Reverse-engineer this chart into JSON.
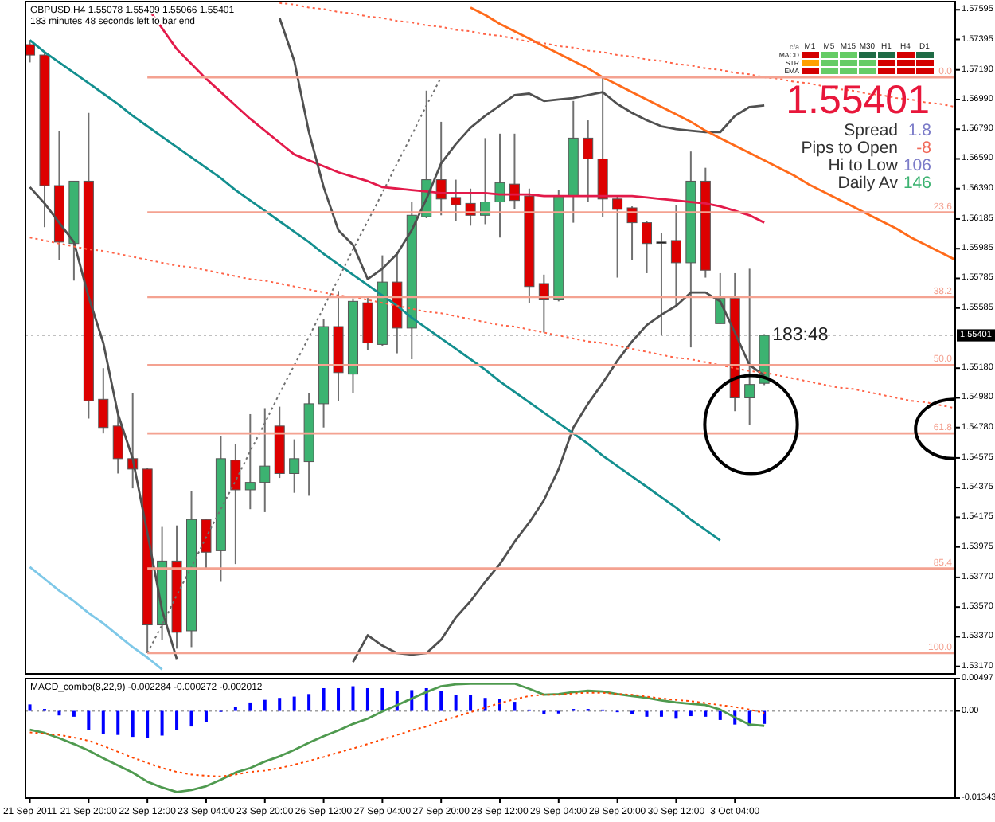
{
  "chart_data": [
    {
      "type": "candlestick",
      "title": "GBPUSD,H4 1.55078 1.55409 1.55066 1.55401",
      "subtitle": "183 minutes 48 seconds left to bar end",
      "categories": [
        null,
        null,
        null,
        null,
        null,
        null,
        null,
        null,
        null,
        null,
        null,
        null,
        null,
        null,
        null,
        null,
        null,
        null,
        null,
        null,
        null,
        null,
        null,
        null,
        null,
        null,
        null,
        null,
        null,
        null,
        null,
        null,
        null,
        null,
        null,
        null,
        null,
        null,
        null,
        null,
        null,
        null,
        null,
        null,
        null,
        null,
        null,
        null,
        null,
        null,
        null,
        null,
        null,
        null,
        null,
        null,
        null,
        null,
        null,
        null,
        null,
        null,
        null,
        null
      ],
      "ohlc": [
        [
          1.5736,
          1.5739,
          1.5724,
          1.5729
        ],
        [
          1.5729,
          1.5731,
          1.5613,
          1.5641
        ],
        [
          1.5641,
          1.5678,
          1.5591,
          1.5603
        ],
        [
          1.5602,
          1.5644,
          1.5577,
          1.5644
        ],
        [
          1.5644,
          1.569,
          1.5484,
          1.5496
        ],
        [
          1.5497,
          1.5518,
          1.5474,
          1.5478
        ],
        [
          1.5479,
          1.5487,
          1.5447,
          1.5457
        ],
        [
          1.5457,
          1.5501,
          1.5437,
          1.545
        ],
        [
          1.545,
          1.5451,
          1.5326,
          1.5345
        ],
        [
          1.5345,
          1.5411,
          1.5335,
          1.5388
        ],
        [
          1.5388,
          1.5412,
          1.5329,
          1.534
        ],
        [
          1.5341,
          1.5435,
          1.533,
          1.5416
        ],
        [
          1.5416,
          1.5416,
          1.5383,
          1.5394
        ],
        [
          1.5395,
          1.5472,
          1.5374,
          1.5457
        ],
        [
          1.5456,
          1.5467,
          1.5386,
          1.5436
        ],
        [
          1.5436,
          1.5487,
          1.5423,
          1.5441
        ],
        [
          1.5441,
          1.5491,
          1.5421,
          1.5452
        ],
        [
          1.5479,
          1.5492,
          1.5444,
          1.5447
        ],
        [
          1.5447,
          1.547,
          1.5434,
          1.5457
        ],
        [
          1.5455,
          1.5501,
          1.5432,
          1.5494
        ],
        [
          1.5494,
          1.5551,
          1.5478,
          1.5546
        ],
        [
          1.5546,
          1.557,
          1.5496,
          1.5515
        ],
        [
          1.5514,
          1.5565,
          1.5501,
          1.5563
        ],
        [
          1.5562,
          1.5566,
          1.553,
          1.5535
        ],
        [
          1.5534,
          1.5594,
          1.5533,
          1.5576
        ],
        [
          1.5576,
          1.5596,
          1.5528,
          1.5545
        ],
        [
          1.5545,
          1.563,
          1.5524,
          1.5621
        ],
        [
          1.562,
          1.5705,
          1.5619,
          1.5645
        ],
        [
          1.5645,
          1.5684,
          1.5621,
          1.5632
        ],
        [
          1.5633,
          1.5645,
          1.5617,
          1.5628
        ],
        [
          1.5629,
          1.5639,
          1.5614,
          1.5621
        ],
        [
          1.5621,
          1.5673,
          1.5615,
          1.563
        ],
        [
          1.563,
          1.5676,
          1.5606,
          1.5643
        ],
        [
          1.5642,
          1.5676,
          1.5625,
          1.5631
        ],
        [
          1.5634,
          1.5639,
          1.5562,
          1.5573
        ],
        [
          1.5575,
          1.5581,
          1.5542,
          1.5564
        ],
        [
          1.5564,
          1.5638,
          1.5563,
          1.5634
        ],
        [
          1.5634,
          1.5698,
          1.5616,
          1.5673
        ],
        [
          1.5673,
          1.5685,
          1.563,
          1.5659
        ],
        [
          1.5659,
          1.5714,
          1.562,
          1.5632
        ],
        [
          1.5632,
          1.5634,
          1.5579,
          1.5625
        ],
        [
          1.5626,
          1.5627,
          1.5591,
          1.5616
        ],
        [
          1.5616,
          1.5617,
          1.5582,
          1.5602
        ],
        [
          1.5603,
          1.5609,
          1.554,
          1.5603
        ],
        [
          1.5604,
          1.5628,
          1.556,
          1.5589
        ],
        [
          1.5589,
          1.5664,
          1.5532,
          1.5644
        ],
        [
          1.5644,
          1.5653,
          1.5579,
          1.5584
        ],
        [
          1.5548,
          1.5582,
          1.5548,
          1.5565
        ],
        [
          1.5565,
          1.5582,
          1.5489,
          1.5498
        ],
        [
          1.5498,
          1.5585,
          1.548,
          1.5507
        ],
        [
          1.55078,
          1.55409,
          1.55066,
          1.55401
        ],
        null,
        null,
        null,
        null,
        null,
        null,
        null,
        null,
        null,
        null,
        null,
        null,
        null
      ],
      "colors": [
        "#dd0000",
        "#dd0000",
        "#dd0000",
        "#3cb371",
        "#dd0000",
        "#dd0000",
        "#dd0000",
        "#dd0000",
        "#dd0000",
        "#3cb371",
        "#dd0000",
        "#3cb371",
        "#dd0000",
        "#3cb371",
        "#dd0000",
        "#3cb371",
        "#3cb371",
        "#dd0000",
        "#3cb371",
        "#3cb371",
        "#3cb371",
        "#dd0000",
        "#3cb371",
        "#dd0000",
        "#3cb371",
        "#dd0000",
        "#3cb371",
        "#3cb371",
        "#dd0000",
        "#dd0000",
        "#dd0000",
        "#3cb371",
        "#3cb371",
        "#dd0000",
        "#dd0000",
        "#dd0000",
        "#3cb371",
        "#3cb371",
        "#dd0000",
        "#dd0000",
        "#dd0000",
        "#dd0000",
        "#dd0000",
        "#000000",
        "#dd0000",
        "#3cb371",
        "#dd0000",
        "#3cb371",
        "#dd0000",
        "#3cb371",
        "#3cb371",
        null,
        null,
        null,
        null,
        null,
        null,
        null,
        null,
        null,
        null,
        null,
        null,
        null
      ],
      "series": [
        {
          "type": "line",
          "color": "#e31a4a",
          "values": [
            null,
            null,
            null,
            null,
            null,
            null,
            null,
            null,
            1.5761,
            1.5747,
            1.5733,
            1.5723,
            1.5713,
            1.5704,
            1.5695,
            1.5686,
            1.5678,
            1.567,
            1.5662,
            1.5658,
            1.5654,
            1.565,
            1.5647,
            1.5644,
            1.564,
            1.5639,
            1.5638,
            1.5637,
            1.5636,
            1.5636,
            1.5636,
            1.5636,
            1.5635,
            1.5635,
            1.5635,
            1.5634,
            1.5634,
            1.5634,
            1.5634,
            1.5634,
            1.5634,
            1.5634,
            1.5633,
            1.5632,
            1.5631,
            1.563,
            1.5629,
            1.5627,
            1.5624,
            1.5621,
            1.5616,
            null,
            null,
            null,
            null,
            null,
            null,
            null,
            null,
            null,
            null,
            null,
            null,
            null
          ]
        },
        {
          "type": "line",
          "color": "#505050",
          "values": [
            null,
            null,
            null,
            null,
            null,
            null,
            null,
            null,
            null,
            null,
            null,
            null,
            null,
            null,
            null,
            null,
            null,
            1.5754,
            1.5725,
            1.5677,
            1.564,
            1.5611,
            1.5601,
            1.5578,
            1.5585,
            1.5595,
            1.5611,
            1.5632,
            1.5656,
            1.5669,
            1.568,
            1.5688,
            1.5695,
            1.5702,
            1.5703,
            1.5698,
            1.5699,
            1.57,
            1.5702,
            1.5704,
            1.5696,
            1.569,
            1.5685,
            1.5681,
            1.5679,
            1.5678,
            1.5677,
            1.5677,
            1.5688,
            1.5694,
            1.5695,
            null,
            null,
            null,
            null,
            null,
            null,
            null,
            null,
            null,
            null,
            null,
            null,
            null
          ]
        },
        {
          "type": "line",
          "color": "#505050",
          "values": [
            1.564,
            1.5629,
            1.5616,
            1.5603,
            1.5566,
            1.5535,
            1.5487,
            1.5457,
            1.5407,
            1.5355,
            1.5322,
            null,
            null,
            null,
            null,
            null,
            null,
            null,
            null,
            null,
            null,
            null,
            1.532,
            1.5338,
            1.5331,
            1.5326,
            1.5325,
            1.5326,
            1.5335,
            1.535,
            1.5361,
            1.5374,
            1.5386,
            1.5401,
            1.5414,
            1.5429,
            1.545,
            1.5478,
            1.5494,
            1.5508,
            1.5523,
            1.5536,
            1.5547,
            1.5554,
            1.556,
            1.5569,
            1.5569,
            1.5563,
            1.5542,
            1.552,
            1.5513,
            null,
            null,
            null,
            null,
            null,
            null,
            null,
            null,
            null,
            null,
            null,
            null,
            null
          ]
        },
        {
          "type": "line",
          "color": "#138f8f",
          "values": [
            1.5739,
            1.5731,
            1.5724,
            1.5717,
            1.571,
            1.5703,
            1.5696,
            1.5688,
            1.5681,
            1.5674,
            1.5667,
            1.566,
            1.5653,
            1.5646,
            1.5638,
            1.5631,
            1.5624,
            1.5617,
            1.561,
            1.5603,
            1.5595,
            1.5588,
            1.5581,
            1.5574,
            1.5567,
            1.556,
            1.5552,
            1.5545,
            1.5538,
            1.5531,
            1.5524,
            1.5517,
            1.5509,
            1.5502,
            1.5495,
            1.5488,
            1.5481,
            1.5474,
            1.5467,
            1.5459,
            1.5452,
            1.5445,
            1.5438,
            1.5431,
            1.5424,
            1.5416,
            1.5409,
            1.5402,
            null,
            null,
            null,
            null,
            null,
            null,
            null,
            null,
            null,
            null,
            null,
            null,
            null,
            null,
            null,
            null
          ]
        },
        {
          "type": "line",
          "color": "#ff6a1a",
          "values": [
            null,
            null,
            null,
            null,
            null,
            null,
            null,
            null,
            null,
            null,
            null,
            null,
            null,
            null,
            null,
            null,
            null,
            null,
            null,
            null,
            null,
            null,
            null,
            null,
            null,
            null,
            null,
            null,
            null,
            null,
            1.5761,
            1.5756,
            1.575,
            1.5745,
            1.574,
            1.5735,
            1.573,
            1.5725,
            1.572,
            1.5714,
            1.5709,
            1.5704,
            1.5699,
            1.5694,
            1.5689,
            1.5684,
            1.5678,
            1.5673,
            1.5668,
            1.5663,
            1.5658,
            1.5653,
            1.5648,
            1.5642,
            1.5637,
            1.5632,
            1.5627,
            1.5622,
            1.5617,
            1.5612,
            1.5606,
            1.5601,
            1.5596,
            1.5591
          ]
        },
        {
          "type": "line",
          "color": "#ff6347",
          "line_style": "dotted",
          "values": [
            1.5606,
            1.5604,
            1.5602,
            1.56,
            1.5598,
            1.5597,
            1.5595,
            1.5593,
            1.5591,
            1.5589,
            1.5587,
            1.5586,
            1.5584,
            1.5582,
            1.558,
            1.5578,
            1.5577,
            1.5575,
            1.5573,
            1.5571,
            1.5569,
            1.5567,
            1.5566,
            1.5564,
            1.5562,
            1.556,
            1.5558,
            1.5556,
            1.5555,
            1.5553,
            1.5551,
            1.5549,
            1.5547,
            1.5546,
            1.5544,
            1.5542,
            1.554,
            1.5538,
            1.5536,
            1.5535,
            1.5533,
            1.5531,
            1.5529,
            1.5527,
            1.5525,
            1.5524,
            1.5522,
            1.552,
            1.5518,
            1.5516,
            1.5515,
            1.5513,
            1.5511,
            1.5509,
            1.5507,
            1.5505,
            1.5504,
            1.5502,
            1.55,
            1.5498,
            1.5496,
            1.5495,
            1.5493,
            1.5491
          ]
        },
        {
          "type": "line",
          "color": "#ff6347",
          "line_style": "dotted",
          "values": [
            null,
            null,
            null,
            null,
            null,
            null,
            null,
            null,
            null,
            null,
            null,
            null,
            null,
            null,
            null,
            null,
            null,
            1.5764,
            1.5763,
            1.5761,
            1.576,
            1.5758,
            1.5757,
            1.5755,
            1.5754,
            1.5752,
            1.5751,
            1.5749,
            1.5748,
            1.5746,
            1.5745,
            1.5743,
            1.5742,
            1.574,
            1.5738,
            1.5737,
            1.5735,
            1.5734,
            1.5732,
            1.5731,
            1.5729,
            1.5728,
            1.5726,
            1.5725,
            1.5723,
            1.5722,
            1.572,
            1.5719,
            1.5717,
            1.5716,
            1.5714,
            1.5713,
            1.5711,
            1.571,
            1.5708,
            1.5706,
            1.5705,
            1.5703,
            1.5702,
            1.57,
            1.5699,
            1.5697,
            1.5696,
            1.5694
          ]
        },
        {
          "type": "line",
          "color": "#7ec8e8",
          "values": [
            1.5384,
            1.5376,
            1.5368,
            1.5361,
            1.5353,
            1.5346,
            1.5338,
            1.533,
            1.5323,
            1.5315,
            null,
            null,
            null,
            null,
            null,
            null,
            null,
            null,
            null,
            null,
            null,
            null,
            null,
            null,
            null,
            null,
            null,
            null,
            null,
            null,
            null,
            null,
            null,
            null,
            null,
            null,
            null,
            null,
            null,
            null,
            null,
            null,
            null,
            null,
            null,
            null,
            null,
            null,
            null,
            null,
            null,
            null,
            null,
            null,
            null,
            null,
            null,
            null,
            null,
            null,
            null,
            null,
            null,
            null
          ]
        },
        {
          "type": "line",
          "color": "#707070",
          "line_style": "dotted",
          "values": [
            null,
            null,
            null,
            null,
            null,
            null,
            null,
            null,
            1.5326,
            1.5345,
            1.5365,
            1.5384,
            1.5404,
            1.5423,
            1.5442,
            1.5462,
            1.5481,
            1.5501,
            1.552,
            1.5539,
            1.5559,
            1.5578,
            1.5598,
            1.5617,
            1.5636,
            1.5656,
            1.5675,
            1.5695,
            1.5714,
            null,
            null,
            null,
            null,
            null,
            null,
            null,
            null,
            null,
            null,
            null,
            null,
            null,
            null,
            null,
            null,
            null,
            null,
            null,
            null,
            null,
            null,
            null,
            null,
            null,
            null,
            null,
            null,
            null,
            null,
            null,
            null,
            null,
            null,
            null
          ]
        },
        {
          "type": "line",
          "name": "0.0",
          "color": "#f4a291",
          "values": [
            null,
            null,
            null,
            null,
            null,
            null,
            null,
            null,
            1.5714,
            1.5714,
            1.5714,
            1.5714,
            1.5714,
            1.5714,
            1.5714,
            1.5714,
            1.5714,
            1.5714,
            1.5714,
            1.5714,
            1.5714,
            1.5714,
            1.5714,
            1.5714,
            1.5714,
            1.5714,
            1.5714,
            1.5714,
            1.5714,
            1.5714,
            1.5714,
            1.5714,
            1.5714,
            1.5714,
            1.5714,
            1.5714,
            1.5714,
            1.5714,
            1.5714,
            1.5714,
            1.5714,
            1.5714,
            1.5714,
            1.5714,
            1.5714,
            1.5714,
            1.5714,
            1.5714,
            1.5714,
            1.5714,
            1.5714,
            1.5714,
            1.5714,
            1.5714,
            1.5714,
            1.5714,
            1.5714,
            1.5714,
            1.5714,
            1.5714,
            1.5714,
            1.5714,
            1.5714,
            1.5714
          ]
        },
        {
          "type": "line",
          "name": "23.6",
          "color": "#f4a291",
          "values": [
            null,
            null,
            null,
            null,
            null,
            null,
            null,
            null,
            1.5623,
            1.5623,
            1.5623,
            1.5623,
            1.5623,
            1.5623,
            1.5623,
            1.5623,
            1.5623,
            1.5623,
            1.5623,
            1.5623,
            1.5623,
            1.5623,
            1.5623,
            1.5623,
            1.5623,
            1.5623,
            1.5623,
            1.5623,
            1.5623,
            1.5623,
            1.5623,
            1.5623,
            1.5623,
            1.5623,
            1.5623,
            1.5623,
            1.5623,
            1.5623,
            1.5623,
            1.5623,
            1.5623,
            1.5623,
            1.5623,
            1.5623,
            1.5623,
            1.5623,
            1.5623,
            1.5623,
            1.5623,
            1.5623,
            1.5623,
            1.5623,
            1.5623,
            1.5623,
            1.5623,
            1.5623,
            1.5623,
            1.5623,
            1.5623,
            1.5623,
            1.5623,
            1.5623,
            1.5623,
            1.5623
          ]
        },
        {
          "type": "line",
          "name": "38.2",
          "color": "#f4a291",
          "values": [
            null,
            null,
            null,
            null,
            null,
            null,
            null,
            null,
            1.5566,
            1.5566,
            1.5566,
            1.5566,
            1.5566,
            1.5566,
            1.5566,
            1.5566,
            1.5566,
            1.5566,
            1.5566,
            1.5566,
            1.5566,
            1.5566,
            1.5566,
            1.5566,
            1.5566,
            1.5566,
            1.5566,
            1.5566,
            1.5566,
            1.5566,
            1.5566,
            1.5566,
            1.5566,
            1.5566,
            1.5566,
            1.5566,
            1.5566,
            1.5566,
            1.5566,
            1.5566,
            1.5566,
            1.5566,
            1.5566,
            1.5566,
            1.5566,
            1.5566,
            1.5566,
            1.5566,
            1.5566,
            1.5566,
            1.5566,
            1.5566,
            1.5566,
            1.5566,
            1.5566,
            1.5566,
            1.5566,
            1.5566,
            1.5566,
            1.5566,
            1.5566,
            1.5566,
            1.5566,
            1.5566
          ]
        },
        {
          "type": "line",
          "name": "50.0",
          "color": "#f4a291",
          "values": [
            null,
            null,
            null,
            null,
            null,
            null,
            null,
            null,
            1.552,
            1.552,
            1.552,
            1.552,
            1.552,
            1.552,
            1.552,
            1.552,
            1.552,
            1.552,
            1.552,
            1.552,
            1.552,
            1.552,
            1.552,
            1.552,
            1.552,
            1.552,
            1.552,
            1.552,
            1.552,
            1.552,
            1.552,
            1.552,
            1.552,
            1.552,
            1.552,
            1.552,
            1.552,
            1.552,
            1.552,
            1.552,
            1.552,
            1.552,
            1.552,
            1.552,
            1.552,
            1.552,
            1.552,
            1.552,
            1.552,
            1.552,
            1.552,
            1.552,
            1.552,
            1.552,
            1.552,
            1.552,
            1.552,
            1.552,
            1.552,
            1.552,
            1.552,
            1.552,
            1.552,
            1.552
          ]
        },
        {
          "type": "line",
          "name": "61.8",
          "color": "#f4a291",
          "values": [
            null,
            null,
            null,
            null,
            null,
            null,
            null,
            null,
            1.5474,
            1.5474,
            1.5474,
            1.5474,
            1.5474,
            1.5474,
            1.5474,
            1.5474,
            1.5474,
            1.5474,
            1.5474,
            1.5474,
            1.5474,
            1.5474,
            1.5474,
            1.5474,
            1.5474,
            1.5474,
            1.5474,
            1.5474,
            1.5474,
            1.5474,
            1.5474,
            1.5474,
            1.5474,
            1.5474,
            1.5474,
            1.5474,
            1.5474,
            1.5474,
            1.5474,
            1.5474,
            1.5474,
            1.5474,
            1.5474,
            1.5474,
            1.5474,
            1.5474,
            1.5474,
            1.5474,
            1.5474,
            1.5474,
            1.5474,
            1.5474,
            1.5474,
            1.5474,
            1.5474,
            1.5474,
            1.5474,
            1.5474,
            1.5474,
            1.5474,
            1.5474,
            1.5474,
            1.5474,
            1.5474
          ]
        },
        {
          "type": "line",
          "name": "85.4",
          "color": "#f4a291",
          "values": [
            null,
            null,
            null,
            null,
            null,
            null,
            null,
            null,
            1.5383,
            1.5383,
            1.5383,
            1.5383,
            1.5383,
            1.5383,
            1.5383,
            1.5383,
            1.5383,
            1.5383,
            1.5383,
            1.5383,
            1.5383,
            1.5383,
            1.5383,
            1.5383,
            1.5383,
            1.5383,
            1.5383,
            1.5383,
            1.5383,
            1.5383,
            1.5383,
            1.5383,
            1.5383,
            1.5383,
            1.5383,
            1.5383,
            1.5383,
            1.5383,
            1.5383,
            1.5383,
            1.5383,
            1.5383,
            1.5383,
            1.5383,
            1.5383,
            1.5383,
            1.5383,
            1.5383,
            1.5383,
            1.5383,
            1.5383,
            1.5383,
            1.5383,
            1.5383,
            1.5383,
            1.5383,
            1.5383,
            1.5383,
            1.5383,
            1.5383,
            1.5383,
            1.5383,
            1.5383,
            1.5383
          ]
        },
        {
          "type": "line",
          "name": "100.0",
          "color": "#f4a291",
          "values": [
            null,
            null,
            null,
            null,
            null,
            null,
            null,
            null,
            1.5326,
            1.5326,
            1.5326,
            1.5326,
            1.5326,
            1.5326,
            1.5326,
            1.5326,
            1.5326,
            1.5326,
            1.5326,
            1.5326,
            1.5326,
            1.5326,
            1.5326,
            1.5326,
            1.5326,
            1.5326,
            1.5326,
            1.5326,
            1.5326,
            1.5326,
            1.5326,
            1.5326,
            1.5326,
            1.5326,
            1.5326,
            1.5326,
            1.5326,
            1.5326,
            1.5326,
            1.5326,
            1.5326,
            1.5326,
            1.5326,
            1.5326,
            1.5326,
            1.5326,
            1.5326,
            1.5326,
            1.5326,
            1.5326,
            1.5326,
            1.5326,
            1.5326,
            1.5326,
            1.5326,
            1.5326,
            1.5326,
            1.5326,
            1.5326,
            1.5326,
            1.5326,
            1.5326,
            1.5326,
            1.5326
          ]
        }
      ],
      "ylim": [
        1.5312,
        1.5765
      ],
      "yticks": [
        1.57595,
        1.57395,
        {
          "value": 1.5719,
          "label": "1.57190"
        },
        {
          "value": 1.5699,
          "label": "1.56990"
        },
        {
          "value": 1.5679,
          "label": "1.56790"
        },
        {
          "value": 1.5659,
          "label": "1.56590"
        },
        {
          "value": 1.5639,
          "label": "1.56390"
        },
        1.56185,
        1.55985,
        1.55785,
        1.55585,
        {
          "value": 1.5518,
          "label": "1.55180"
        },
        {
          "value": 1.5498,
          "label": "1.54980"
        },
        {
          "value": 1.5478,
          "label": "1.54780"
        },
        1.54575,
        1.54375,
        1.54175,
        1.53975,
        {
          "value": 1.5377,
          "label": "1.53770"
        },
        {
          "value": 1.5357,
          "label": "1.53570"
        },
        {
          "value": 1.5337,
          "label": "1.53370"
        },
        {
          "value": 1.5317,
          "label": "1.53170"
        }
      ],
      "ref_lines": [
        {
          "axis": "y",
          "value": 1.55401,
          "label": "1.55401",
          "color": "#c0c0c0",
          "line_style": "dotted"
        }
      ],
      "annotations": [
        {
          "text": "183:48",
          "y": 1.55401
        },
        "c/a",
        "M1",
        "M5",
        "M15",
        "M30",
        "H1",
        "H4",
        "D1",
        "MACD",
        "STR",
        "EMA",
        "1.55401",
        "Spread",
        "1.8",
        "Pips to Open",
        "-8",
        "Hi to Low",
        "106",
        "Daily Av",
        "146"
      ]
    },
    {
      "type": "bar",
      "title": "MACD_combo(8,22,9) -0.002284 -0.000272 -0.002012",
      "categories": [
        "21 Sep 2011",
        null,
        null,
        null,
        "21 Sep 20:00",
        null,
        null,
        null,
        "22 Sep 12:00",
        null,
        null,
        null,
        "23 Sep 04:00",
        null,
        null,
        null,
        "23 Sep 20:00",
        null,
        null,
        null,
        "26 Sep 12:00",
        null,
        null,
        null,
        "27 Sep 04:00",
        null,
        null,
        null,
        "27 Sep 20:00",
        null,
        null,
        null,
        "28 Sep 12:00",
        null,
        null,
        null,
        "29 Sep 04:00",
        null,
        null,
        null,
        "29 Sep 20:00",
        null,
        null,
        null,
        "30 Sep 12:00",
        null,
        null,
        null,
        "3 Oct 04:00",
        null,
        null,
        null,
        null,
        null,
        null,
        null,
        null,
        null,
        null,
        null,
        null,
        null,
        null,
        null
      ],
      "series": [
        {
          "color": "#0000ff",
          "values": [
            0.001,
            0.0003,
            -0.0007,
            -0.0009,
            -0.0029,
            -0.0035,
            -0.0037,
            -0.004,
            -0.0042,
            -0.0038,
            -0.003,
            -0.0024,
            -0.0017,
            -0.0001,
            0.0006,
            0.0013,
            0.0017,
            0.002,
            0.0022,
            0.0026,
            0.0035,
            0.0035,
            0.0038,
            0.0035,
            0.0035,
            0.0031,
            0.0032,
            0.0035,
            0.0031,
            0.0025,
            0.0024,
            0.002,
            0.0018,
            0.0014,
            0.0002,
            -0.0005,
            -0.0004,
            0.0003,
            0.0003,
            0.0002,
            -0.0002,
            -0.0005,
            -0.0009,
            -0.0009,
            -0.0012,
            -0.0008,
            -0.0009,
            -0.0014,
            -0.0021,
            -0.0024,
            -0.002,
            null,
            null,
            null,
            null,
            null,
            null,
            null,
            null,
            null,
            null,
            null,
            null,
            null
          ]
        },
        {
          "type": "line",
          "color": "#4f9a4f",
          "values": [
            -0.0029,
            -0.0034,
            -0.0042,
            -0.0051,
            -0.0061,
            -0.0073,
            -0.0084,
            -0.0095,
            -0.0109,
            -0.0118,
            -0.0125,
            -0.0122,
            -0.0116,
            -0.0106,
            -0.0095,
            -0.0088,
            -0.0078,
            -0.007,
            -0.006,
            -0.0049,
            -0.0039,
            -0.003,
            -0.002,
            -0.0012,
            -0.0001,
            0.0009,
            0.0019,
            0.0029,
            0.0038,
            0.0041,
            0.0042,
            0.0042,
            0.0042,
            0.0042,
            0.0034,
            0.0025,
            0.0026,
            0.0029,
            0.0031,
            0.003,
            0.0026,
            0.0023,
            0.002,
            0.0016,
            0.0013,
            0.0011,
            0.0009,
            0.0002,
            -0.001,
            -0.0021,
            -0.0023,
            null,
            null,
            null,
            null,
            null,
            null,
            null,
            null,
            null,
            null,
            null,
            null,
            null
          ]
        },
        {
          "type": "line",
          "color": "#ff4500",
          "line_style": "dotted",
          "values": [
            -0.0033,
            -0.0035,
            -0.0037,
            -0.0041,
            -0.0046,
            -0.0054,
            -0.0063,
            -0.0072,
            -0.008,
            -0.0088,
            -0.0094,
            -0.0098,
            -0.01,
            -0.0101,
            -0.0098,
            -0.0094,
            -0.0092,
            -0.0088,
            -0.0083,
            -0.0077,
            -0.0071,
            -0.0064,
            -0.0058,
            -0.0051,
            -0.0044,
            -0.0037,
            -0.003,
            -0.0024,
            -0.0016,
            -0.0009,
            -0.0002,
            0.0005,
            0.0012,
            0.0018,
            0.0023,
            0.0025,
            0.0025,
            0.0027,
            0.0028,
            0.0028,
            0.0026,
            0.0025,
            0.0022,
            0.0019,
            0.0017,
            0.0015,
            0.0012,
            0.0009,
            0.0006,
            0.0002,
            -0.0003,
            null,
            null,
            null,
            null,
            null,
            null,
            null,
            null,
            null,
            null,
            null,
            null,
            null
          ]
        }
      ],
      "ylim": [
        -0.01343,
        0.00497
      ],
      "yticks": [
        0.00497,
        {
          "value": 0,
          "label": "0.00"
        },
        -0.01343
      ],
      "ref_lines": [
        {
          "axis": "y",
          "value": 0,
          "color": "#a0a0a0",
          "line_style": "dotted"
        }
      ]
    }
  ]
}
